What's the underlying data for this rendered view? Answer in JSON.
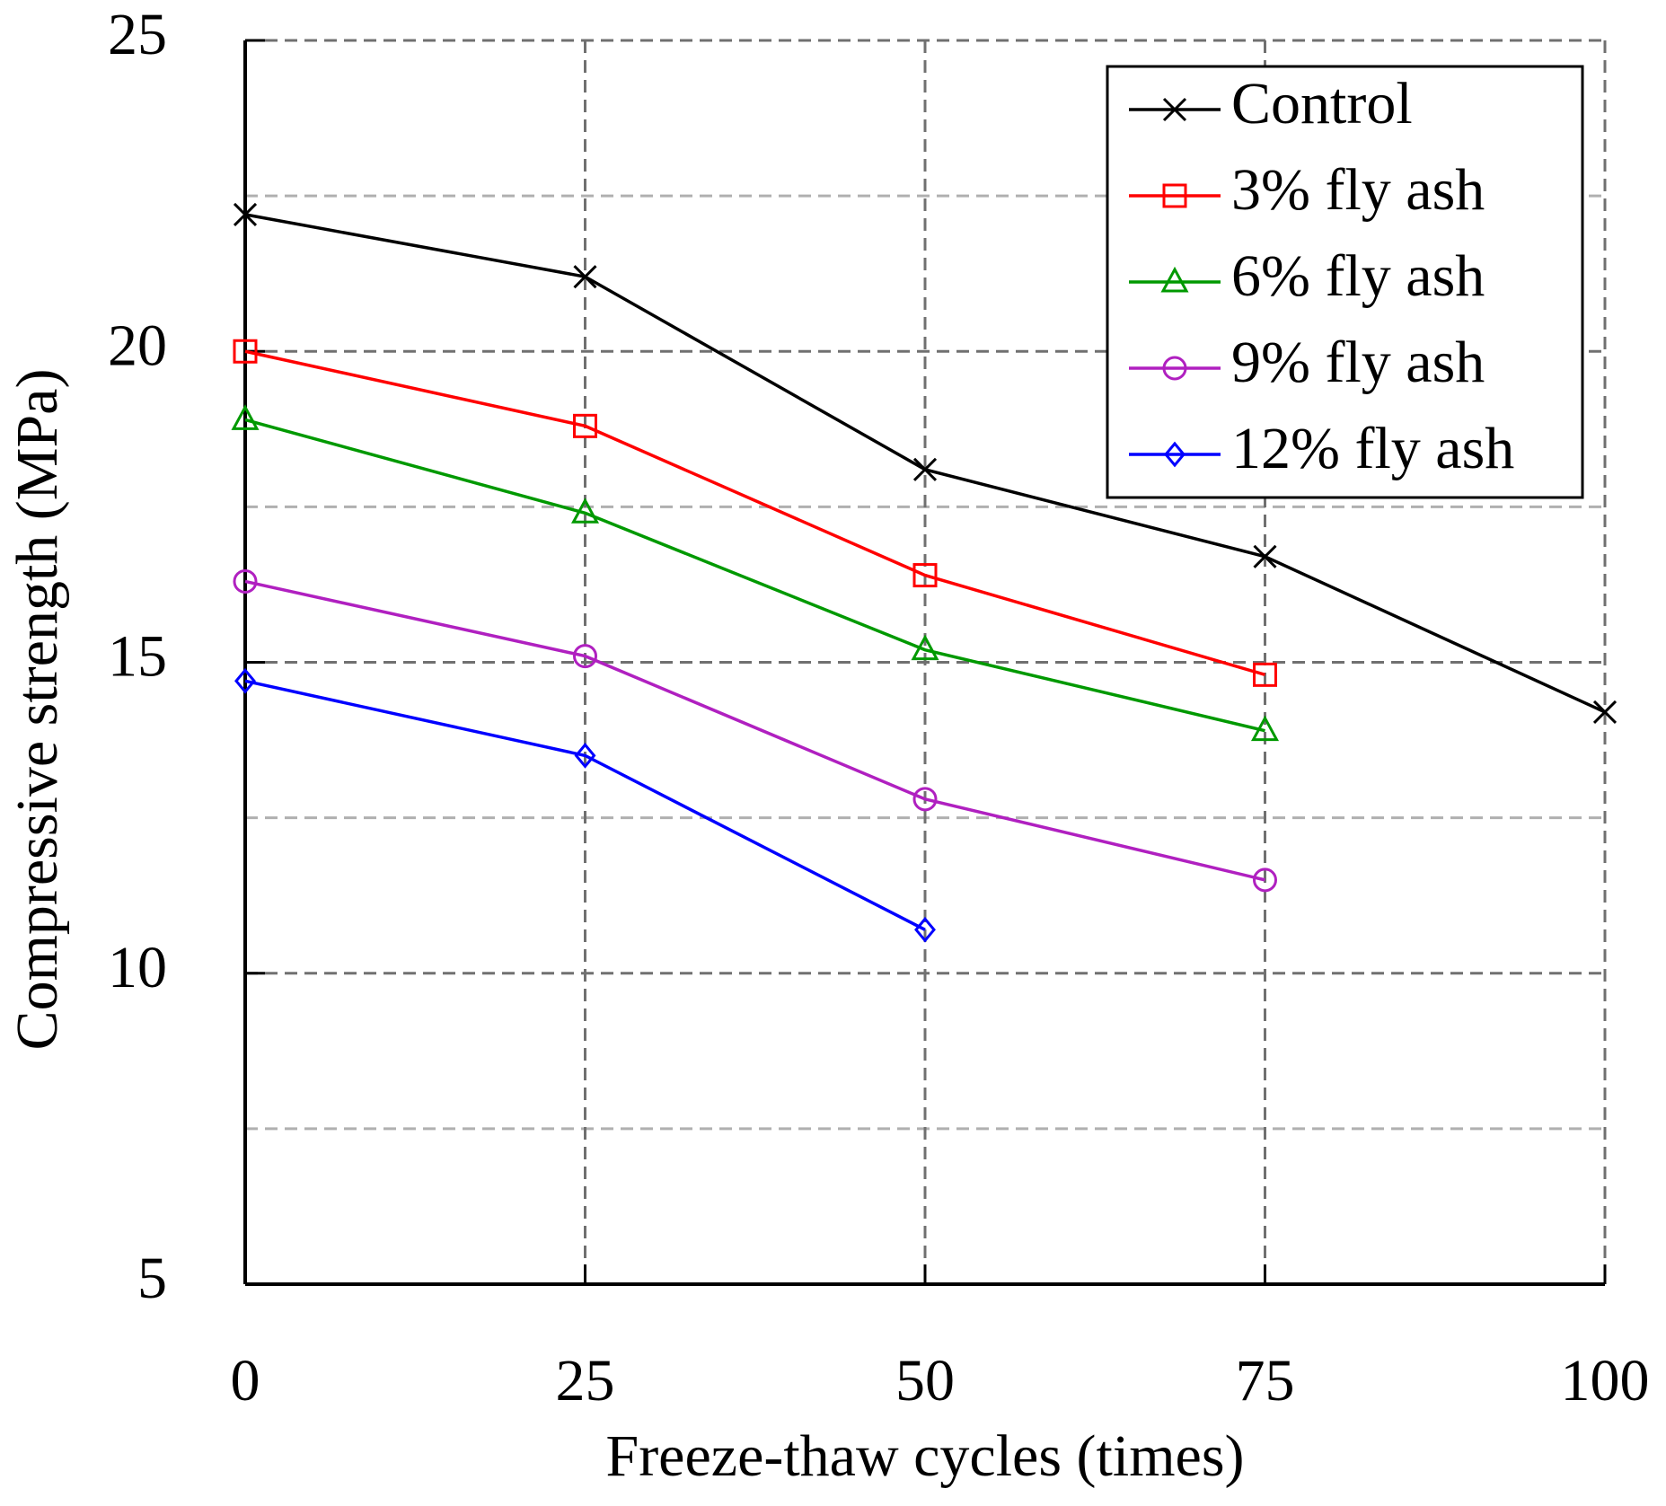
{
  "chart_data": {
    "type": "line",
    "x_label": "Freeze-thaw cycles (times)",
    "y_label": "Compressive strength  (MPa)",
    "x": [
      0,
      25,
      50,
      75,
      100
    ],
    "xlim": [
      0,
      100
    ],
    "xticks": [
      0,
      25,
      50,
      75,
      100
    ],
    "ylim": [
      5,
      25
    ],
    "yticks": [
      5,
      10,
      15,
      20,
      25
    ],
    "minor_yticks": [
      7.5,
      12.5,
      17.5,
      22.5
    ],
    "grid": true,
    "legend": "upper right",
    "series": [
      {
        "name": "Control",
        "color": "#000000",
        "marker": "x",
        "values": [
          22.2,
          21.2,
          18.1,
          16.7,
          14.2
        ]
      },
      {
        "name": "3% fly ash",
        "color": "#ff0000",
        "marker": "square",
        "values": [
          20.0,
          18.8,
          16.4,
          14.8,
          null
        ]
      },
      {
        "name": "6% fly ash",
        "color": "#009900",
        "marker": "triangle",
        "values": [
          18.9,
          17.4,
          15.2,
          13.9,
          null
        ]
      },
      {
        "name": "9% fly ash",
        "color": "#b020c0",
        "marker": "circle",
        "values": [
          16.3,
          15.1,
          12.8,
          11.5,
          null
        ]
      },
      {
        "name": "12% fly ash",
        "color": "#0000ff",
        "marker": "diamond",
        "values": [
          14.7,
          13.5,
          10.7,
          null,
          null
        ]
      }
    ]
  }
}
